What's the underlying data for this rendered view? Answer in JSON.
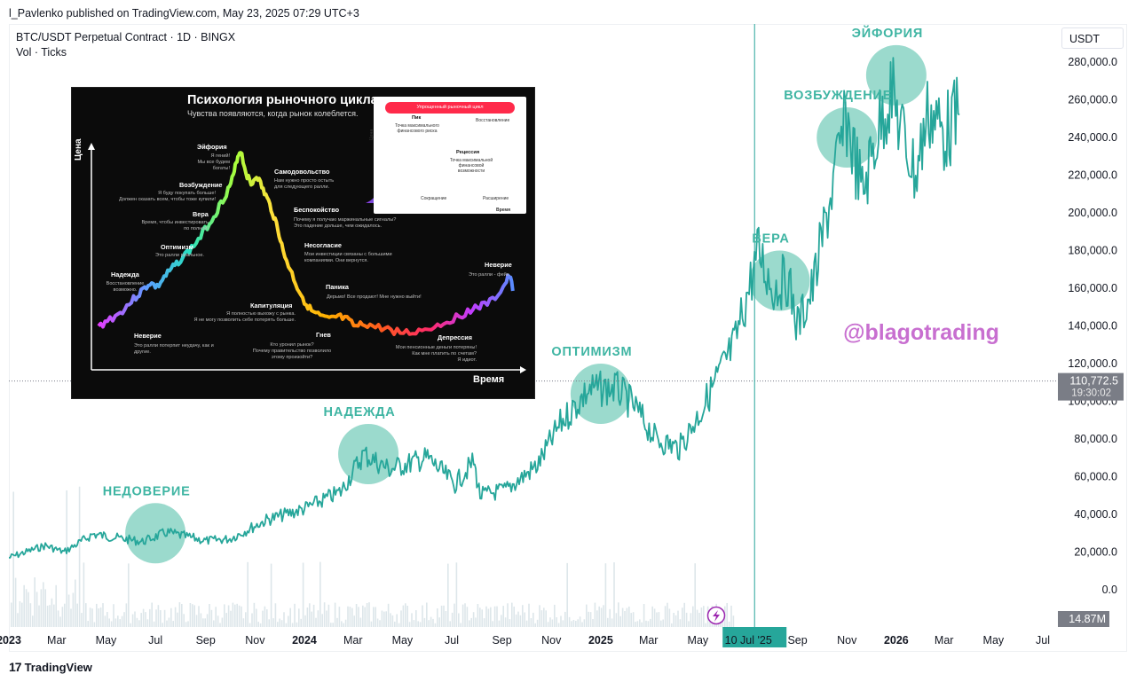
{
  "header": {
    "published_by": "l_Pavlenko published on TradingView.com, May 23, 2025 07:29 UTC+3",
    "series_title": "BTC/USDT Perpetual Contract · 1D · BINGX",
    "volume_title": "Vol · Ticks",
    "unit": "USDT"
  },
  "footer": {
    "brand_mark": "17",
    "brand": "TradingView"
  },
  "watermark": "@blagotrading",
  "price_label": {
    "value": "110,772.5",
    "countdown": "19:30:02"
  },
  "volume_label": "14.87M",
  "crosshair_date": "10 Jul '25",
  "colors": {
    "price_line": "#26a69a",
    "phase_circle": "#7fcfbf",
    "phase_text": "#3fb5a3",
    "watermark": "#c86fd0",
    "price_badge": "#7a7d86",
    "date_badge": "#26a69a"
  },
  "inset": {
    "title": "Психология рыночного цикла",
    "subtitle": "Чувства появляются, когда рынок колеблется.",
    "y_label": "Цена",
    "x_label": "Время",
    "phases": [
      {
        "name": "Эйфория",
        "desc": "Я гений!\nМы все будем богаты!"
      },
      {
        "name": "Возбуждение",
        "desc": "Я буду покупать больше!\nДолжен сказать всем, чтобы тоже купили!"
      },
      {
        "name": "Вера",
        "desc": "Время, чтобы инвестировать\nпо полной!"
      },
      {
        "name": "Оптимизм",
        "desc": "Это ралли реальное."
      },
      {
        "name": "Надежда",
        "desc": "Восстановление\nвозможно."
      },
      {
        "name": "Неверие",
        "desc": "Это ралли потерпит неудачу, как и\nдругие."
      },
      {
        "name": "Самодовольство",
        "desc": "Нам нужно просто остыть\nдля следующего ралли."
      },
      {
        "name": "Беспокойство",
        "desc": "Почему я получаю маржинальные сигналы?\nЭто падение дольше, чем ожидалось."
      },
      {
        "name": "Несогласие",
        "desc": "Мои инвестиции связаны с большими\nкомпаниями. Они вернутся."
      },
      {
        "name": "Паника",
        "desc": "Дерьмо! Все продают! Мне нужно выйти!"
      },
      {
        "name": "Капитуляция",
        "desc": "Я полностью выхожу с рынка.\nЯ не могу позволить себе потерять больше."
      },
      {
        "name": "Гнев",
        "desc": "Кто уронил рынок?\nПочему правительство позволило\nэтому произойти?"
      },
      {
        "name": "Депрессия",
        "desc": "Мои пенсионные деньги потеряны!\nКак мне платить по счетам?\nЯ идиот."
      },
      {
        "name": "Неверие",
        "desc": "Это ралли - фейк."
      }
    ],
    "mini_chart": {
      "header": "Упрощенный рыночный цикл",
      "peak_title": "Пик",
      "peak_desc": "Точка максимального\nфинансового риска",
      "recovery": "Восстановление",
      "recession_title": "Рецессия",
      "recession_desc": "Точка максимальной\nфинансовой\nвозможности",
      "contraction": "Сокращение",
      "expansion": "Расширение",
      "y_label": "Цена",
      "x_label": "Время",
      "handle": "@kriptach"
    }
  },
  "chart_data": {
    "type": "line",
    "title": "BTC/USDT Perpetual Contract · 1D · BINGX",
    "ylabel": "USDT",
    "y_ticks": [
      0,
      20000,
      40000,
      60000,
      80000,
      100000,
      120000,
      140000,
      160000,
      180000,
      200000,
      220000,
      240000,
      260000,
      280000
    ],
    "y_tick_labels": [
      "0.0",
      "20,000.0",
      "40,000.0",
      "60,000.0",
      "80,000.0",
      "100,000.0",
      "120,000.0",
      "140,000.0",
      "160,000.0",
      "180,000.0",
      "200,000.0",
      "220,000.0",
      "240,000.0",
      "260,000.0",
      "280,000.0"
    ],
    "x_tick_labels": [
      "2023",
      "Mar",
      "May",
      "Jul",
      "Sep",
      "Nov",
      "2024",
      "Mar",
      "May",
      "Jul",
      "Sep",
      "Nov",
      "2025",
      "Mar",
      "May",
      "10 Jul '25",
      "Sep",
      "Nov",
      "2026",
      "Mar",
      "May",
      "Jul"
    ],
    "x_ticks_bold": [
      "2023",
      "2024",
      "2025",
      "2026"
    ],
    "series": [
      {
        "name": "BTC/USDT",
        "points": [
          [
            "2023-01-01",
            17000
          ],
          [
            "2023-02-15",
            23500
          ],
          [
            "2023-03-10",
            20000
          ],
          [
            "2023-04-15",
            29500
          ],
          [
            "2023-06-15",
            25500
          ],
          [
            "2023-07-15",
            30500
          ],
          [
            "2023-09-01",
            26000
          ],
          [
            "2023-10-01",
            27000
          ],
          [
            "2023-11-15",
            37000
          ],
          [
            "2024-01-01",
            43000
          ],
          [
            "2024-02-15",
            52000
          ],
          [
            "2024-03-14",
            72000
          ],
          [
            "2024-04-15",
            64000
          ],
          [
            "2024-06-01",
            70000
          ],
          [
            "2024-07-05",
            56000
          ],
          [
            "2024-07-28",
            68000
          ],
          [
            "2024-08-05",
            50000
          ],
          [
            "2024-09-06",
            53000
          ],
          [
            "2024-10-15",
            66000
          ],
          [
            "2024-11-12",
            88000
          ],
          [
            "2024-12-17",
            106000
          ],
          [
            "2025-01-20",
            107000
          ],
          [
            "2025-02-10",
            98000
          ],
          [
            "2025-03-10",
            80000
          ],
          [
            "2025-04-08",
            75000
          ],
          [
            "2025-05-05",
            95000
          ],
          [
            "2025-05-22",
            110000
          ],
          [
            "2025-06-15",
            130000
          ],
          [
            "2025-07-15",
            180000
          ],
          [
            "2025-08-01",
            160000
          ],
          [
            "2025-08-20",
            165000
          ],
          [
            "2025-09-01",
            140000
          ],
          [
            "2025-09-20",
            160000
          ],
          [
            "2025-10-10",
            205000
          ],
          [
            "2025-11-01",
            250000
          ],
          [
            "2025-11-20",
            210000
          ],
          [
            "2025-12-10",
            245000
          ],
          [
            "2025-12-25",
            265000
          ],
          [
            "2026-01-10",
            240000
          ],
          [
            "2026-01-25",
            220000
          ],
          [
            "2026-02-10",
            255000
          ],
          [
            "2026-03-01",
            242000
          ],
          [
            "2026-03-20",
            252000
          ]
        ]
      }
    ],
    "last_price": 110772.5,
    "last_volume": "14.87M",
    "annotations": [
      {
        "label": "НЕДОВЕРИЕ",
        "date": "2023-07-01",
        "value": 30000
      },
      {
        "label": "НАДЕЖДА",
        "date": "2024-03-20",
        "value": 72000
      },
      {
        "label": "ОПТИМИЗМ",
        "date": "2025-01-01",
        "value": 104000
      },
      {
        "label": "ВЕРА",
        "date": "2025-08-10",
        "value": 164000
      },
      {
        "label": "ВОЗБУЖДЕНИЕ",
        "date": "2025-11-01",
        "value": 240000
      },
      {
        "label": "ЭЙФОРИЯ",
        "date": "2026-01-01",
        "value": 273000
      }
    ],
    "legend": "none",
    "grid": false
  }
}
